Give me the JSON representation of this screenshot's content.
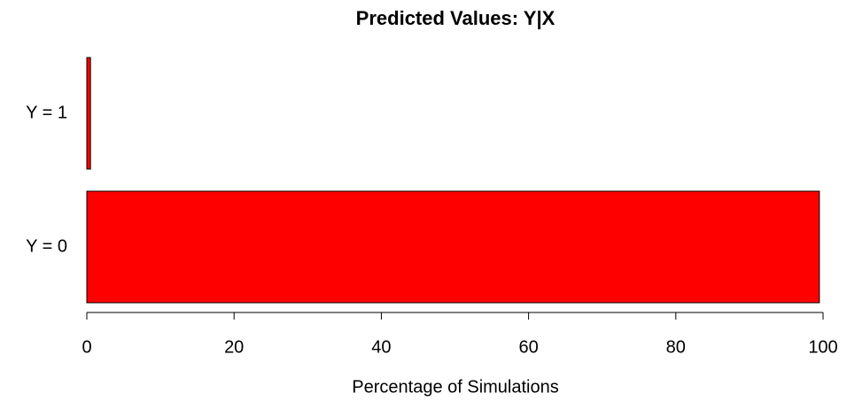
{
  "chart_data": {
    "type": "barh",
    "title": "Predicted Values: Y|X",
    "xlabel": "Percentage of Simulations",
    "categories": [
      "Y = 0",
      "Y = 1"
    ],
    "values": [
      99.5,
      0.5
    ],
    "color": "#ff0000",
    "xlim": [
      0,
      100
    ],
    "xticks": [
      0,
      20,
      40,
      60,
      80,
      100
    ]
  }
}
